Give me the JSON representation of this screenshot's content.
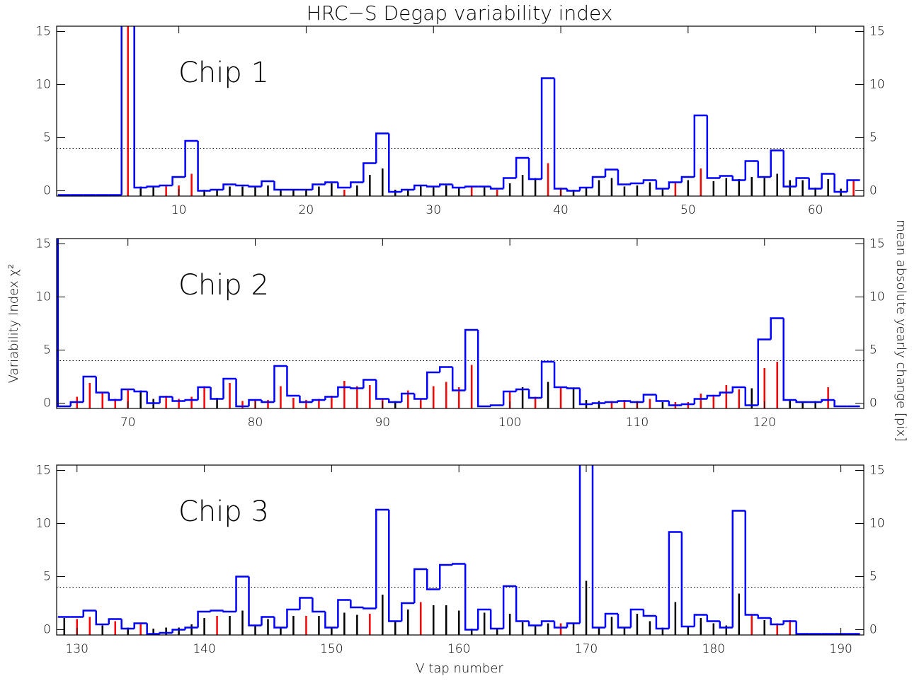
{
  "title": "HRC−S Degap variability index",
  "ylabel": "Variability Index χ²",
  "y2label": "mean absolute yearly change [pix]",
  "xlabel": "V tap number",
  "chart_data": [
    {
      "type": "step",
      "annotation": "Chip 1",
      "x": [
        1,
        2,
        3,
        4,
        5,
        6,
        7,
        8,
        9,
        10,
        11,
        12,
        13,
        14,
        15,
        16,
        17,
        18,
        19,
        20,
        21,
        22,
        23,
        24,
        25,
        26,
        27,
        28,
        29,
        30,
        31,
        32,
        33,
        34,
        35,
        36,
        37,
        38,
        39,
        40,
        41,
        42,
        43,
        44,
        45,
        46,
        47,
        48,
        49,
        50,
        51,
        52,
        53,
        54,
        55,
        56,
        57,
        58,
        59,
        60,
        61,
        62,
        63
      ],
      "series": [
        {
          "color": "#0000ff",
          "values": [
            -0.4,
            -0.4,
            -0.4,
            -0.4,
            -0.4,
            16,
            0.3,
            0.4,
            0.5,
            1.3,
            4.7,
            0,
            0.1,
            0.6,
            0.5,
            0.4,
            0.9,
            0.1,
            0.1,
            0.1,
            0.6,
            0.8,
            0.3,
            0.8,
            2.6,
            5.4,
            -0.1,
            0.1,
            0.5,
            0.4,
            0.6,
            0.3,
            0.4,
            0.4,
            0.2,
            1.2,
            3.1,
            1.1,
            10.6,
            0.2,
            0,
            0.3,
            1.3,
            2.0,
            0.6,
            0.7,
            1.0,
            0.2,
            0.8,
            1.3,
            7.1,
            1.2,
            1.4,
            1.0,
            2.8,
            1.3,
            3.8,
            0.4,
            1.2,
            0.2,
            1.6,
            -0.1,
            1.0
          ]
        },
        {
          "axis": "y2",
          "values": [
            null,
            null,
            null,
            null,
            null,
            16,
            0.4,
            0.4,
            0.5,
            0.5,
            1.6,
            0.1,
            0.1,
            0.4,
            0.4,
            0.4,
            0.5,
            0.1,
            0.1,
            0.1,
            0.4,
            0.7,
            0.1,
            0.5,
            1.5,
            2.1,
            0.1,
            0.1,
            0.5,
            0.4,
            0.5,
            0.3,
            0.4,
            0.4,
            0.1,
            0.7,
            1.5,
            1.2,
            2.6,
            0.3,
            0.1,
            0.3,
            1.0,
            1.2,
            0.4,
            0.5,
            0.8,
            0.2,
            0.8,
            1.0,
            2.1,
            0.9,
            1.2,
            1.1,
            1.3,
            1.2,
            1.6,
            1.0,
            1.0,
            0.3,
            1.1,
            0.2,
            1.0
          ],
          "colors": [
            null,
            null,
            null,
            null,
            null,
            "#ff0000",
            "#000000",
            "#000000",
            "#ff0000",
            "#ff0000",
            "#ff0000",
            "#000000",
            "#000000",
            "#000000",
            "#000000",
            "#000000",
            "#000000",
            "#000000",
            "#000000",
            "#000000",
            "#000000",
            "#000000",
            "#ff0000",
            "#000000",
            "#000000",
            "#000000",
            "#000000",
            "#000000",
            "#000000",
            "#000000",
            "#000000",
            "#000000",
            "#ff0000",
            "#000000",
            "#ff0000",
            "#000000",
            "#000000",
            "#000000",
            "#ff0000",
            "#ff0000",
            "#000000",
            "#000000",
            "#000000",
            "#000000",
            "#000000",
            "#000000",
            "#000000",
            "#000000",
            "#ff0000",
            "#000000",
            "#ff0000",
            "#000000",
            "#000000",
            "#000000",
            "#000000",
            "#000000",
            "#000000",
            "#000000",
            "#000000",
            "#000000",
            "#000000",
            "#000000",
            "#ff0000"
          ]
        }
      ],
      "hline": 4,
      "xlim": [
        0.4,
        63.8
      ],
      "xticks": [
        10,
        20,
        30,
        40,
        50,
        60
      ],
      "ylim": [
        -0.5,
        15.5
      ],
      "yticks": [
        0,
        5,
        10,
        15
      ],
      "y2lim": [
        -0.5,
        15.5
      ],
      "y2ticks": [
        0,
        5,
        10,
        15
      ]
    },
    {
      "type": "step",
      "annotation": "Chip 2",
      "x": [
        64,
        65,
        66,
        67,
        68,
        69,
        70,
        71,
        72,
        73,
        74,
        75,
        76,
        77,
        78,
        79,
        80,
        81,
        82,
        83,
        84,
        85,
        86,
        87,
        88,
        89,
        90,
        91,
        92,
        93,
        94,
        95,
        96,
        97,
        98,
        99,
        100,
        101,
        102,
        103,
        104,
        105,
        106,
        107,
        108,
        109,
        110,
        111,
        112,
        113,
        114,
        115,
        116,
        117,
        118,
        119,
        120,
        121,
        122,
        123,
        124,
        125,
        126,
        127
      ],
      "series": [
        {
          "color": "#0000ff",
          "values": [
            16,
            -0.3,
            0.1,
            2.5,
            1.0,
            0.3,
            1.3,
            1.1,
            0,
            0.6,
            0.2,
            0.3,
            1.5,
            0.4,
            2.3,
            -0.3,
            0.3,
            0.1,
            3.5,
            0.7,
            0.1,
            0.3,
            0.6,
            1.5,
            1.4,
            2.2,
            0.4,
            0.1,
            0.9,
            0.4,
            2.9,
            3.4,
            1.2,
            6.9,
            -0.3,
            -0.2,
            1.1,
            1.3,
            0.5,
            3.9,
            1.5,
            1.4,
            -0.1,
            0,
            0.1,
            0.2,
            0.1,
            0.8,
            0.2,
            -0.2,
            -0.1,
            0.4,
            0.7,
            1.0,
            1.5,
            -0.2,
            6.0,
            8.0,
            0.3,
            0.1,
            0.1,
            0.3,
            -0.3,
            -0.3
          ]
        },
        {
          "axis": "y2",
          "values": [
            null,
            null,
            0.6,
            1.9,
            1.0,
            0.4,
            1.3,
            1.2,
            0.4,
            0.7,
            0.4,
            0.6,
            1.6,
            0.5,
            1.9,
            0.2,
            0.3,
            0.3,
            1.6,
            0.5,
            0.3,
            0.4,
            0.7,
            2.1,
            1.6,
            1.7,
            0.4,
            0.2,
            1.2,
            0.4,
            1.6,
            2.0,
            1.5,
            3.6,
            null,
            null,
            1.1,
            1.5,
            0.6,
            2.0,
            1.5,
            1.4,
            0.3,
            0.2,
            0.2,
            0.3,
            0.2,
            0.4,
            0.1,
            0.1,
            0.1,
            0.9,
            0.8,
            1.7,
            1.3,
            1.4,
            3.3,
            3.9,
            0.3,
            0.1,
            0.2,
            1.5,
            null,
            null
          ],
          "colors": [
            null,
            null,
            "#ff0000",
            "#ff0000",
            "#ff0000",
            "#ff0000",
            "#ff0000",
            "#000000",
            "#000000",
            "#ff0000",
            "#ff0000",
            "#ff0000",
            "#ff0000",
            "#000000",
            "#ff0000",
            "#ff0000",
            "#ff0000",
            "#ff0000",
            "#ff0000",
            "#ff0000",
            "#ff0000",
            "#ff0000",
            "#ff0000",
            "#ff0000",
            "#ff0000",
            "#ff0000",
            "#ff0000",
            "#000000",
            "#ff0000",
            "#ff0000",
            "#ff0000",
            "#ff0000",
            "#ff0000",
            "#ff0000",
            null,
            null,
            "#ff0000",
            "#000000",
            "#ff0000",
            "#000000",
            "#ff0000",
            "#000000",
            "#000000",
            "#000000",
            "#ff0000",
            "#ff0000",
            "#ff0000",
            "#ff0000",
            "#000000",
            "#ff0000",
            "#ff0000",
            "#ff0000",
            "#ff0000",
            "#ff0000",
            "#ff0000",
            "#000000",
            "#ff0000",
            "#ff0000",
            "#000000",
            "#000000",
            "#000000",
            "#ff0000",
            null,
            null
          ]
        }
      ],
      "hline": 4,
      "xlim": [
        64.4,
        127.8
      ],
      "xticks": [
        70,
        80,
        90,
        100,
        110,
        120
      ],
      "ylim": [
        -0.5,
        15.5
      ],
      "yticks": [
        0,
        5,
        10,
        15
      ],
      "y2lim": [
        -0.5,
        15.5
      ],
      "y2ticks": [
        0,
        5,
        10,
        15
      ]
    },
    {
      "type": "step",
      "annotation": "Chip 3",
      "x": [
        129,
        130,
        131,
        132,
        133,
        134,
        135,
        136,
        137,
        138,
        139,
        140,
        141,
        142,
        143,
        144,
        145,
        146,
        147,
        148,
        149,
        150,
        151,
        152,
        153,
        154,
        155,
        156,
        157,
        158,
        159,
        160,
        161,
        162,
        163,
        164,
        165,
        166,
        167,
        168,
        169,
        170,
        171,
        172,
        173,
        174,
        175,
        176,
        177,
        178,
        179,
        180,
        181,
        182,
        183,
        184,
        185,
        186,
        187,
        188,
        189,
        190,
        191
      ],
      "series": [
        {
          "color": "#0000ff",
          "values": [
            1.2,
            1.2,
            1.8,
            0.5,
            1.0,
            0.1,
            0.6,
            -0.4,
            -0.3,
            0,
            0.2,
            1.7,
            1.8,
            1.7,
            5.0,
            0.4,
            1.2,
            0.2,
            1.9,
            3.0,
            1.7,
            0.2,
            2.8,
            2.1,
            2.0,
            11.3,
            0.8,
            2.5,
            5.7,
            3.8,
            6.1,
            6.2,
            0,
            1.9,
            0.1,
            4.1,
            0.8,
            0.4,
            0.8,
            0.2,
            0.6,
            16,
            0.2,
            1.5,
            0.2,
            1.9,
            1.3,
            0.1,
            9.2,
            0.3,
            1.4,
            0.8,
            0.2,
            11.2,
            1.4,
            1.1,
            0.5,
            0.8,
            -0.4,
            -0.4,
            -0.4,
            -0.4,
            -0.4
          ]
        },
        {
          "axis": "y2",
          "values": [
            1.1,
            1.0,
            1.2,
            0.4,
            0.8,
            0.2,
            0.6,
            0.1,
            0.2,
            0.2,
            0.5,
            1.1,
            1.3,
            1.3,
            1.8,
            0.4,
            1.0,
            0.2,
            1.3,
            1.3,
            1.3,
            0.2,
            1.6,
            1.4,
            1.5,
            3.3,
            0.8,
            1.9,
            2.6,
            2.3,
            2.3,
            1.8,
            0.1,
            1.6,
            0.1,
            1.5,
            0.7,
            0.4,
            0.6,
            0.6,
            0.6,
            4.6,
            0.2,
            1.2,
            0.2,
            1.5,
            0.8,
            0.2,
            2.6,
            0.3,
            1.1,
            0.6,
            0.4,
            3.4,
            1.4,
            0.9,
            0.6,
            0.9,
            null,
            null,
            null,
            null,
            null
          ],
          "colors": [
            "#000000",
            "#ff0000",
            "#ff0000",
            "#000000",
            "#ff0000",
            "#000000",
            "#ff0000",
            "#000000",
            "#000000",
            "#000000",
            "#000000",
            "#000000",
            "#ff0000",
            "#000000",
            "#000000",
            "#000000",
            "#000000",
            "#000000",
            "#000000",
            "#ff0000",
            "#000000",
            "#000000",
            "#000000",
            "#000000",
            "#ff0000",
            "#000000",
            "#000000",
            "#000000",
            "#ff0000",
            "#000000",
            "#000000",
            "#000000",
            "#000000",
            "#000000",
            "#000000",
            "#000000",
            "#000000",
            "#000000",
            "#000000",
            "#ff0000",
            "#000000",
            "#000000",
            "#000000",
            "#000000",
            "#000000",
            "#000000",
            "#000000",
            "#000000",
            "#000000",
            "#000000",
            "#000000",
            "#000000",
            "#000000",
            "#000000",
            "#ff0000",
            "#000000",
            "#ff0000",
            "#ff0000",
            null,
            null,
            null,
            null,
            null
          ]
        }
      ],
      "hline": 4,
      "xlim": [
        128.4,
        191.8
      ],
      "xticks": [
        130,
        140,
        150,
        160,
        170,
        180,
        190
      ],
      "ylim": [
        -0.5,
        15.5
      ],
      "yticks": [
        0,
        5,
        10,
        15
      ],
      "y2lim": [
        -0.5,
        15.5
      ],
      "y2ticks": [
        0,
        5,
        10,
        15
      ]
    }
  ]
}
